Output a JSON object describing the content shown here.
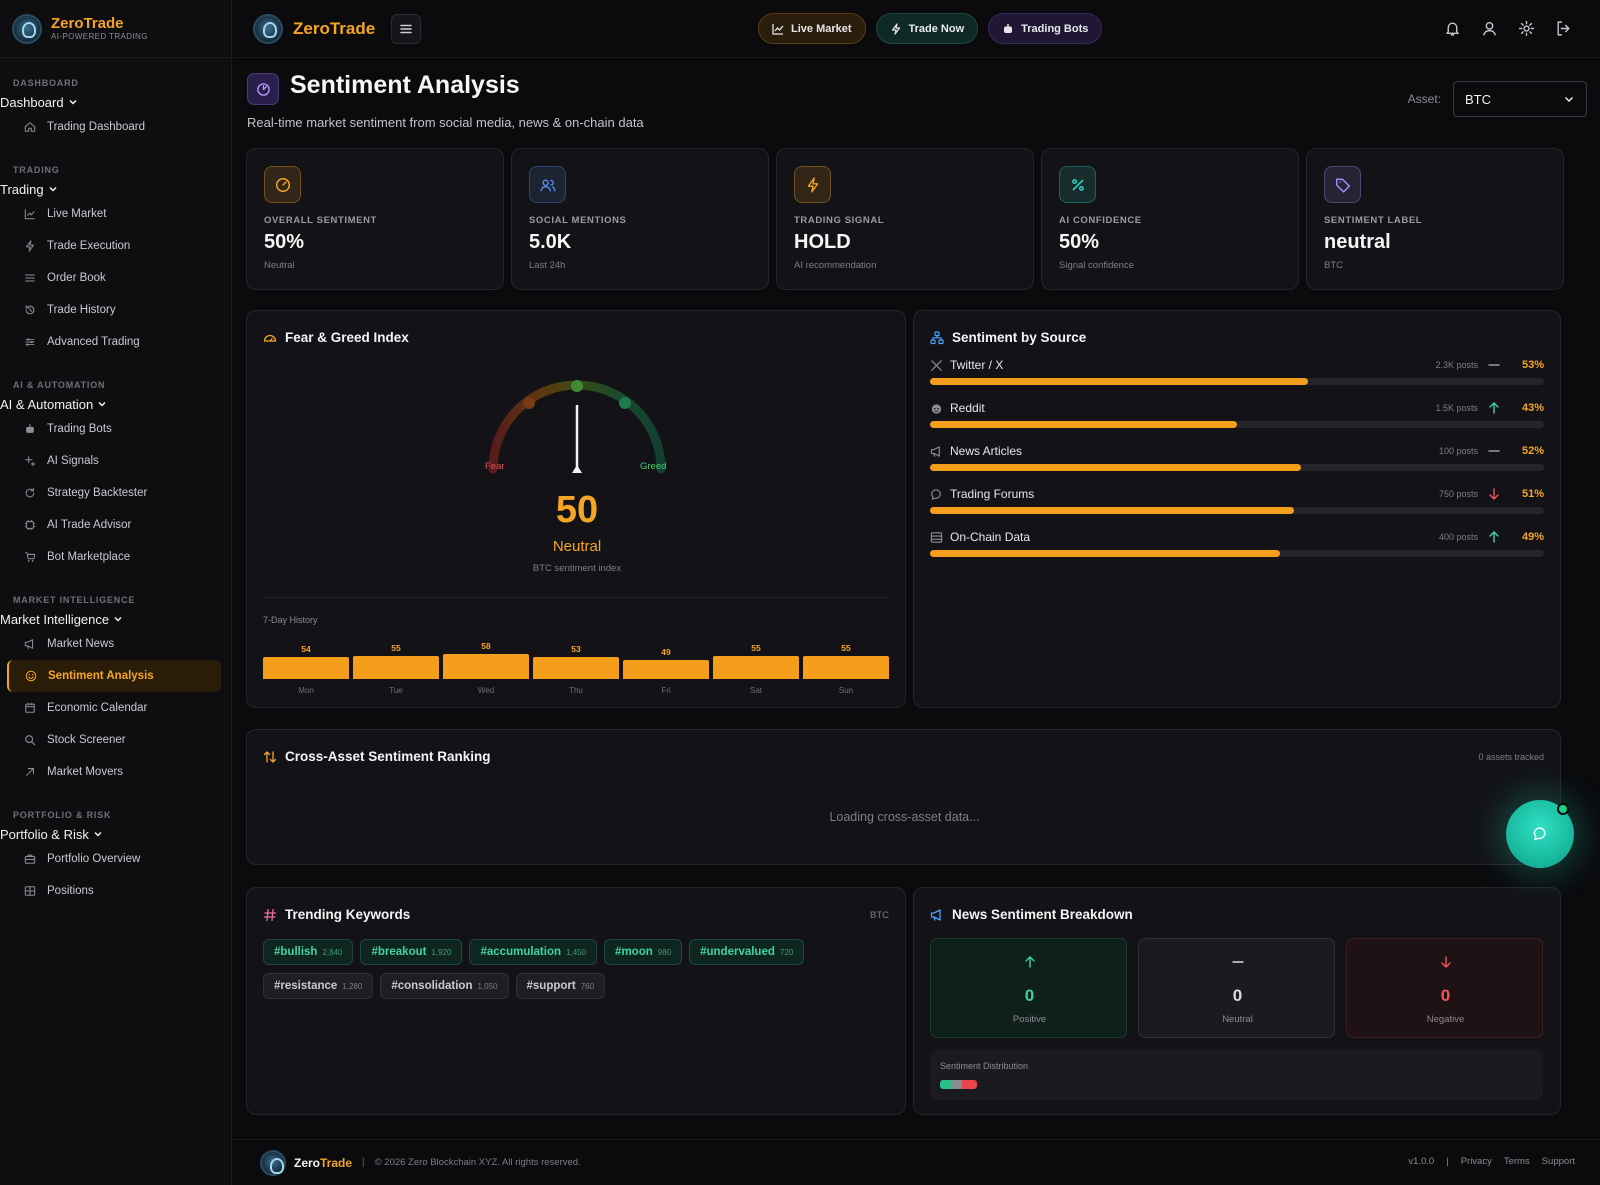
{
  "app": {
    "name_prefix": "Zero",
    "name_suffix": "Trade",
    "brand": "ZeroTrade",
    "tagline": "AI-POWERED TRADING"
  },
  "sidebar": {
    "sections": [
      {
        "caption": "DASHBOARD",
        "group": "Dashboard",
        "items": [
          {
            "label": "Trading Dashboard",
            "icon": "home-icon"
          }
        ]
      },
      {
        "caption": "TRADING",
        "group": "Trading",
        "items": [
          {
            "label": "Live Market",
            "icon": "chart-line-icon"
          },
          {
            "label": "Trade Execution",
            "icon": "lightning-icon"
          },
          {
            "label": "Order Book",
            "icon": "list-icon"
          },
          {
            "label": "Trade History",
            "icon": "history-icon"
          },
          {
            "label": "Advanced Trading",
            "icon": "sliders-icon"
          }
        ]
      },
      {
        "caption": "AI & AUTOMATION",
        "group": "AI & Automation",
        "items": [
          {
            "label": "Trading Bots",
            "icon": "bot-icon"
          },
          {
            "label": "AI Signals",
            "icon": "sparkle-icon"
          },
          {
            "label": "Strategy Backtester",
            "icon": "rotate-icon"
          },
          {
            "label": "AI Trade Advisor",
            "icon": "chip-icon"
          },
          {
            "label": "Bot Marketplace",
            "icon": "cart-icon"
          }
        ]
      },
      {
        "caption": "MARKET INTELLIGENCE",
        "group": "Market Intelligence",
        "items": [
          {
            "label": "Market News",
            "icon": "megaphone-icon"
          },
          {
            "label": "Sentiment Analysis",
            "icon": "smile-icon",
            "active": true
          },
          {
            "label": "Economic Calendar",
            "icon": "calendar-icon"
          },
          {
            "label": "Stock Screener",
            "icon": "search-icon"
          },
          {
            "label": "Market Movers",
            "icon": "arrow-up-right-icon"
          }
        ]
      },
      {
        "caption": "PORTFOLIO & RISK",
        "group": "Portfolio & Risk",
        "items": [
          {
            "label": "Portfolio Overview",
            "icon": "briefcase-icon"
          },
          {
            "label": "Positions",
            "icon": "grid-icon"
          }
        ]
      }
    ]
  },
  "topbar": {
    "live_market": "Live Market",
    "trade_now": "Trade Now",
    "trading_bots": "Trading Bots"
  },
  "page": {
    "title": "Sentiment Analysis",
    "subtitle": "Real-time market sentiment from social media, news & on-chain data",
    "asset_label": "Asset:",
    "asset_value": "BTC"
  },
  "stats": [
    {
      "label": "OVERALL SENTIMENT",
      "value": "50%",
      "sub": "Neutral",
      "icon": "gauge-icon",
      "color": "#f5a524"
    },
    {
      "label": "SOCIAL MENTIONS",
      "value": "5.0K",
      "sub": "Last 24h",
      "icon": "users-icon",
      "color": "#5b8def"
    },
    {
      "label": "TRADING SIGNAL",
      "value": "HOLD",
      "sub": "AI recommendation",
      "icon": "lightning-icon",
      "color": "#f5a524"
    },
    {
      "label": "AI CONFIDENCE",
      "value": "50%",
      "sub": "Signal confidence",
      "icon": "percent-icon",
      "color": "#2fd3c0"
    },
    {
      "label": "SENTIMENT LABEL",
      "value": "neutral",
      "sub": "BTC",
      "icon": "tag-icon",
      "color": "#a78bfa"
    }
  ],
  "fear_greed": {
    "title": "Fear & Greed Index",
    "value": "50",
    "label": "Neutral",
    "sub": "BTC sentiment index",
    "fear_label": "Fear",
    "greed_label": "Greed",
    "history_label": "7-Day History",
    "history": [
      {
        "day": "Mon",
        "value": 54
      },
      {
        "day": "Tue",
        "value": 55
      },
      {
        "day": "Wed",
        "value": 58
      },
      {
        "day": "Thu",
        "value": 53
      },
      {
        "day": "Fri",
        "value": 49
      },
      {
        "day": "Sat",
        "value": 55
      },
      {
        "day": "Sun",
        "value": 55
      }
    ]
  },
  "sources": {
    "title": "Sentiment by Source",
    "rows": [
      {
        "name": "Twitter / X",
        "posts": "2.3K posts",
        "trend": "flat",
        "pct": "53%",
        "value": 53,
        "icon": "x-logo-icon"
      },
      {
        "name": "Reddit",
        "posts": "1.5K posts",
        "trend": "up",
        "pct": "43%",
        "value": 43,
        "icon": "reddit-icon"
      },
      {
        "name": "News Articles",
        "posts": "100 posts",
        "trend": "flat",
        "pct": "52%",
        "value": 52,
        "icon": "megaphone-icon"
      },
      {
        "name": "Trading Forums",
        "posts": "750 posts",
        "trend": "down",
        "pct": "51%",
        "value": 51,
        "icon": "chat-icon"
      },
      {
        "name": "On-Chain Data",
        "posts": "400 posts",
        "trend": "up",
        "pct": "49%",
        "value": 49,
        "icon": "database-icon"
      }
    ]
  },
  "cross_asset": {
    "title": "Cross-Asset Sentiment Ranking",
    "meta": "0 assets tracked",
    "loading": "Loading cross-asset data..."
  },
  "keywords": {
    "title": "Trending Keywords",
    "meta": "BTC",
    "chips": [
      {
        "tag": "#bullish",
        "count": "2,840",
        "tone": "pos"
      },
      {
        "tag": "#breakout",
        "count": "1,920",
        "tone": "pos"
      },
      {
        "tag": "#accumulation",
        "count": "1,450",
        "tone": "pos"
      },
      {
        "tag": "#moon",
        "count": "980",
        "tone": "pos"
      },
      {
        "tag": "#undervalued",
        "count": "720",
        "tone": "pos"
      },
      {
        "tag": "#resistance",
        "count": "1,280",
        "tone": "neu"
      },
      {
        "tag": "#consolidation",
        "count": "1,050",
        "tone": "neu"
      },
      {
        "tag": "#support",
        "count": "760",
        "tone": "neu"
      }
    ]
  },
  "news": {
    "title": "News Sentiment Breakdown",
    "positive": {
      "value": "0",
      "label": "Positive"
    },
    "neutral": {
      "value": "0",
      "label": "Neutral"
    },
    "negative": {
      "value": "0",
      "label": "Negative"
    },
    "distribution_label": "Sentiment Distribution"
  },
  "footer": {
    "copyright": "© 2026 Zero Blockchain XYZ. All rights reserved.",
    "version": "v1.0.0",
    "privacy": "Privacy",
    "terms": "Terms",
    "support": "Support"
  }
}
